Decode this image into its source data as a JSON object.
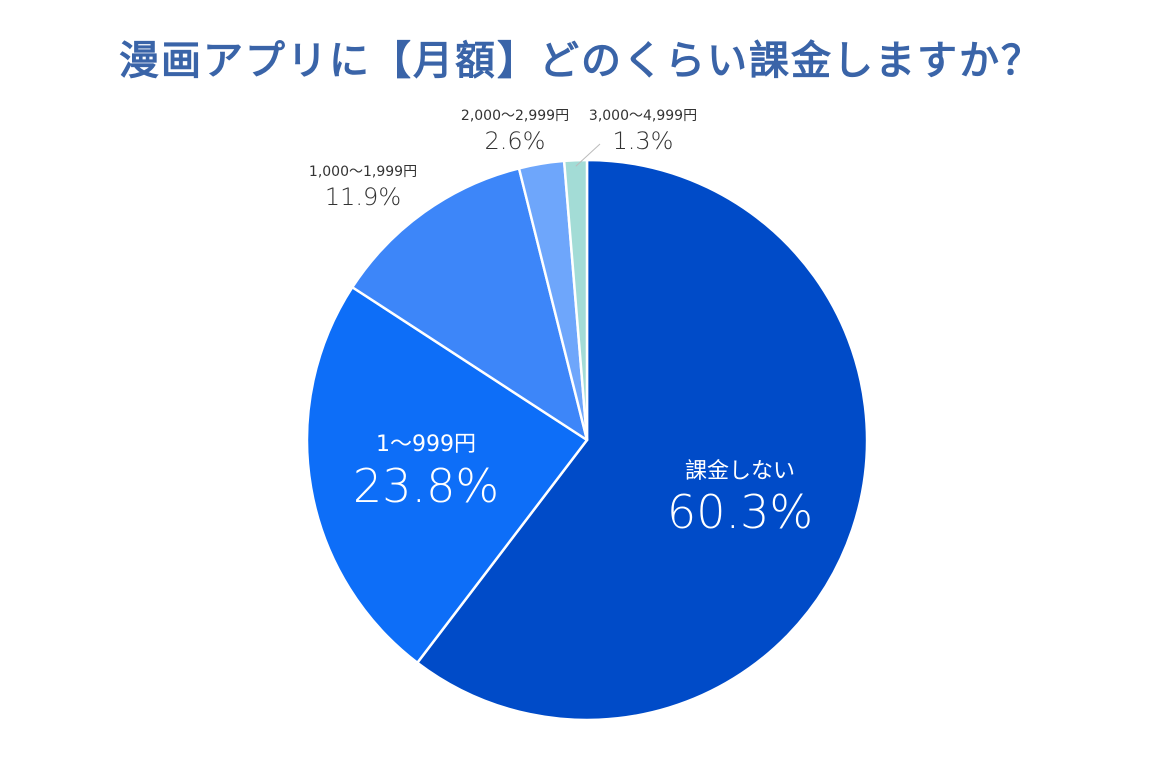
{
  "chart_data": {
    "type": "pie",
    "title": "漫画アプリに【月額】どのくらい課金しますか？",
    "slices": [
      {
        "label": "課金しない",
        "value": 60.3,
        "value_label": "60.3%",
        "color": "#004bc8",
        "label_color": "#ffffff"
      },
      {
        "label": "1〜999円",
        "value": 23.8,
        "value_label": "23.8%",
        "color": "#0d6ef8",
        "label_color": "#ffffff"
      },
      {
        "label": "1,000〜1,999円",
        "value": 11.9,
        "value_label": "11.9%",
        "color": "#3d86f9",
        "label_color": "#333333"
      },
      {
        "label": "2,000〜2,999円",
        "value": 2.6,
        "value_label": "2.6%",
        "color": "#6ea6fb",
        "label_color": "#333333"
      },
      {
        "label": "3,000〜4,999円",
        "value": 1.3,
        "value_label": "1.3%",
        "color": "#a3dcd6",
        "label_color": "#333333"
      }
    ],
    "start_angle_deg": 0,
    "direction": "clockwise",
    "slice_border_color": "#ffffff",
    "legend": "none"
  }
}
